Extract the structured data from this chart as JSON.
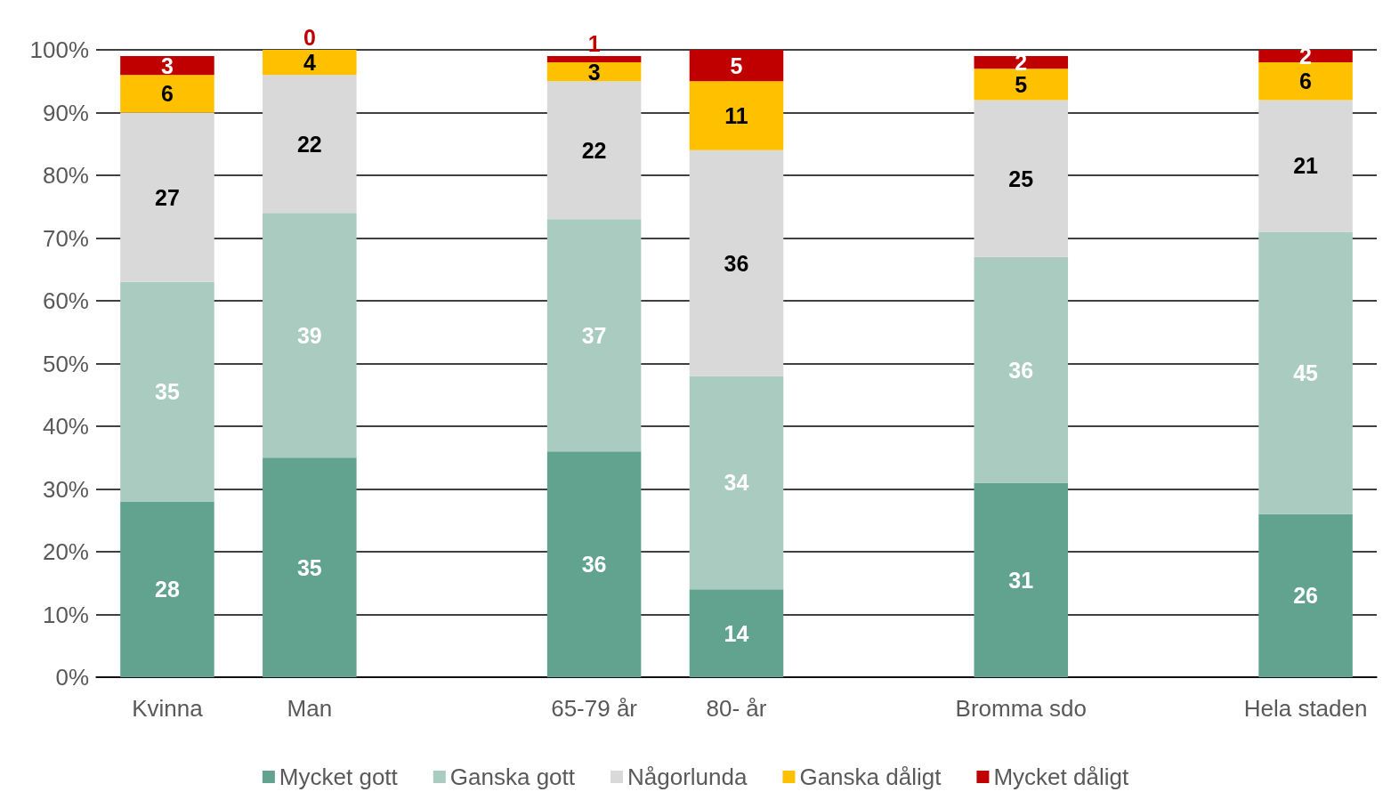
{
  "chart_data": {
    "type": "bar",
    "stacked": true,
    "data_labels": true,
    "grid": "y",
    "legend": "bottom",
    "categories": [
      "Kvinna",
      "Man",
      null,
      "65-79 år",
      "80- år",
      null,
      "Bromma sdo",
      null,
      "Hela staden"
    ],
    "series": [
      {
        "name": "Mycket gott",
        "color": "#62a390",
        "values": [
          28,
          35,
          null,
          36,
          14,
          null,
          31,
          null,
          26
        ]
      },
      {
        "name": "Ganska gott",
        "color": "#a9cbc0",
        "values": [
          35,
          39,
          null,
          37,
          34,
          null,
          36,
          null,
          45
        ]
      },
      {
        "name": "Någorlunda",
        "color": "#d9d9d9",
        "values": [
          27,
          22,
          null,
          22,
          36,
          null,
          25,
          null,
          21
        ]
      },
      {
        "name": "Ganska dåligt",
        "color": "#ffc000",
        "values": [
          6,
          4,
          null,
          3,
          11,
          null,
          5,
          null,
          6
        ]
      },
      {
        "name": "Mycket dåligt",
        "color": "#c00000",
        "values": [
          3,
          0,
          null,
          1,
          5,
          null,
          2,
          null,
          2
        ]
      }
    ],
    "ylim": [
      0,
      100
    ],
    "yticks": [
      {
        "value": 0,
        "label": "0%"
      },
      {
        "value": 10,
        "label": "10%"
      },
      {
        "value": 20,
        "label": "20%"
      },
      {
        "value": 30,
        "label": "30%"
      },
      {
        "value": 40,
        "label": "40%"
      },
      {
        "value": 50,
        "label": "50%"
      },
      {
        "value": 60,
        "label": "60%"
      },
      {
        "value": 70,
        "label": "70%"
      },
      {
        "value": 80,
        "label": "80%"
      },
      {
        "value": 90,
        "label": "90%"
      },
      {
        "value": 100,
        "label": "100%"
      }
    ]
  }
}
